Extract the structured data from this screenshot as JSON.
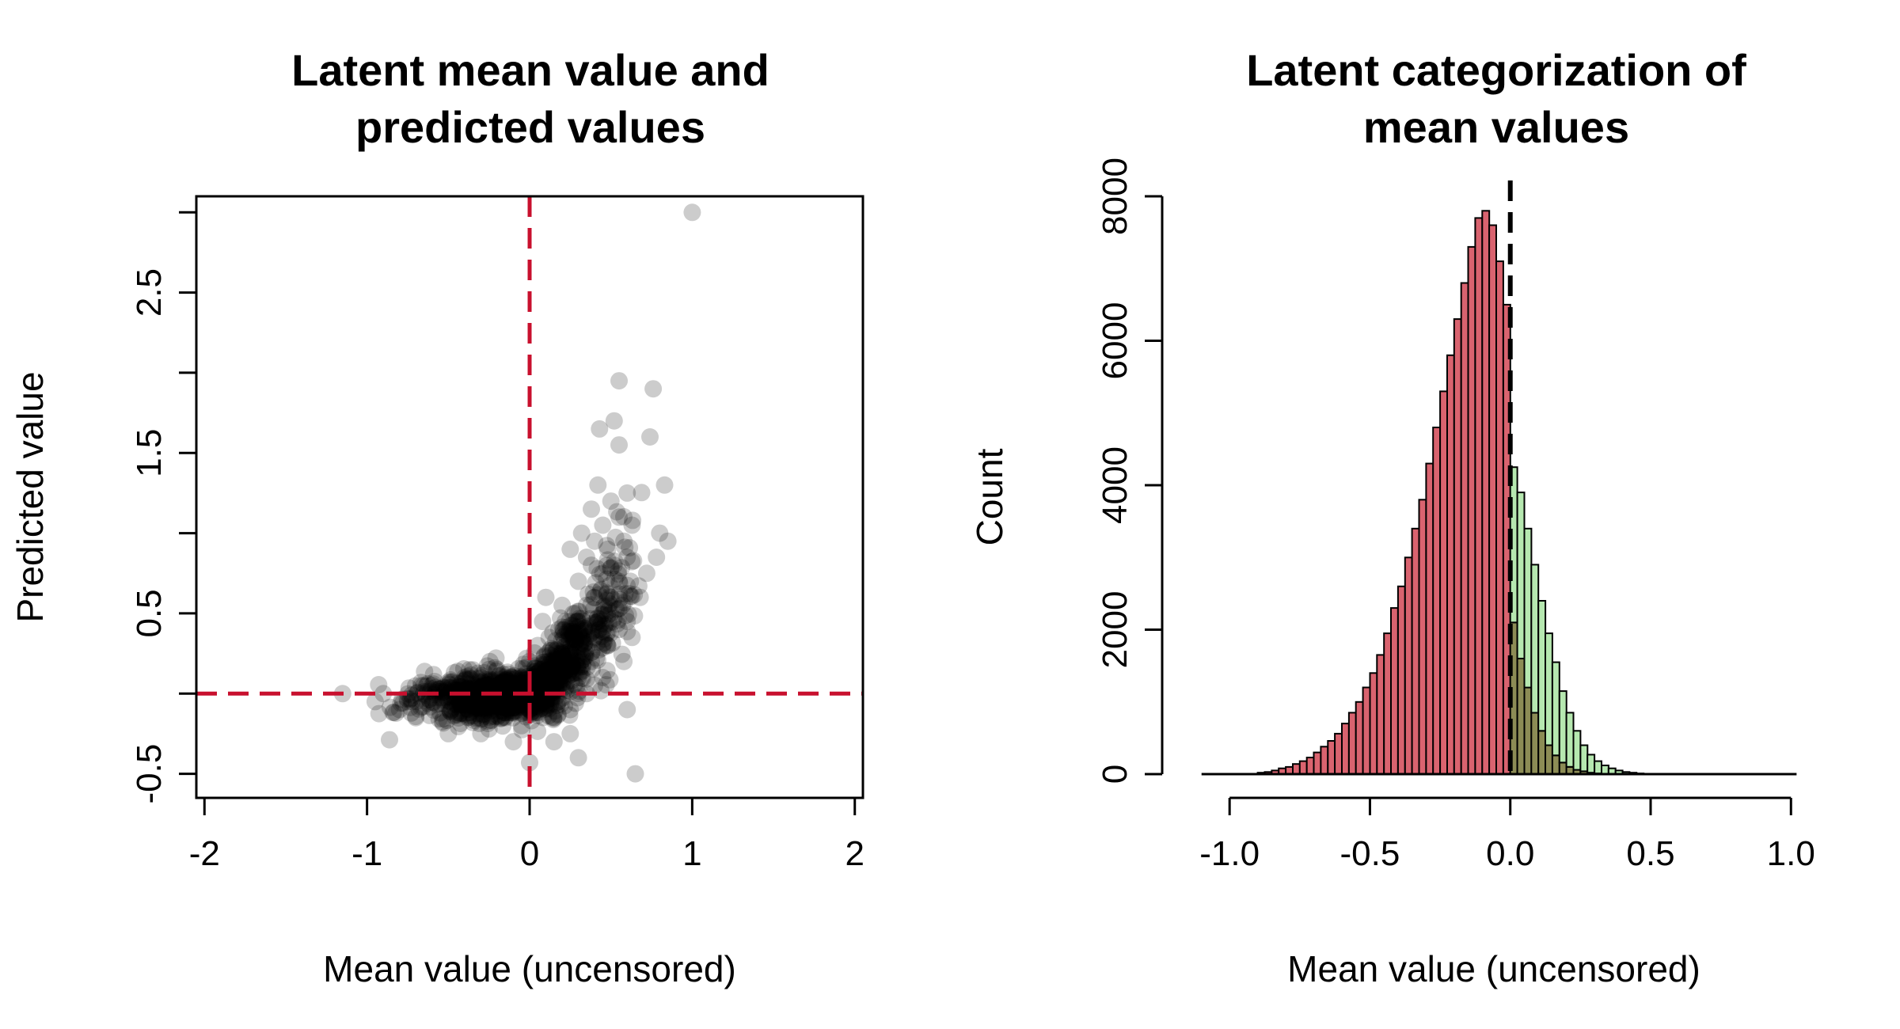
{
  "colors": {
    "scatter_point": "#000000",
    "reference_line": "#C8102E",
    "hist_negative": "#D9636F",
    "hist_positive": "#B6E8B0",
    "hist_overlap": "#8C8C55",
    "zero_line": "#000000"
  },
  "chart_data": [
    {
      "type": "scatter",
      "title": [
        "Latent mean value and",
        "predicted values"
      ],
      "xlabel": "Mean value (uncensored)",
      "ylabel": "Predicted value",
      "xlim": [
        -2.05,
        2.05
      ],
      "ylim": [
        -0.65,
        3.1
      ],
      "xticks": [
        -2,
        -1,
        0,
        1,
        2
      ],
      "xtick_labels": [
        "-2",
        "-1",
        "0",
        "1",
        "2"
      ],
      "yticks": [
        -0.5,
        0,
        0.5,
        1,
        1.5,
        2,
        2.5,
        3
      ],
      "ytick_labels": [
        "-0.5",
        "",
        "0.5",
        "",
        "1.5",
        "",
        "2.5",
        ""
      ],
      "reference_lines": {
        "vertical_x": 0,
        "horizontal_y": 0,
        "style": "dashed"
      },
      "points_note": "dense cloud of ~thousands semi-transparent grey points",
      "points": [
        [
          1.0,
          3.0
        ],
        [
          0.55,
          1.95
        ],
        [
          0.76,
          1.9
        ],
        [
          0.43,
          1.65
        ],
        [
          0.52,
          1.7
        ],
        [
          0.55,
          1.55
        ],
        [
          0.74,
          1.6
        ],
        [
          0.42,
          1.3
        ],
        [
          0.6,
          1.25
        ],
        [
          0.83,
          1.3
        ],
        [
          0.5,
          1.2
        ],
        [
          0.55,
          1.1
        ],
        [
          0.38,
          1.15
        ],
        [
          0.63,
          1.05
        ],
        [
          0.8,
          1.0
        ],
        [
          0.85,
          0.95
        ],
        [
          0.32,
          1.0
        ],
        [
          0.45,
          1.05
        ],
        [
          0.58,
          0.95
        ],
        [
          0.78,
          0.85
        ],
        [
          0.72,
          0.75
        ],
        [
          0.68,
          0.6
        ],
        [
          0.65,
          -0.5
        ],
        [
          0.0,
          -0.43
        ],
        [
          0.6,
          -0.1
        ],
        [
          0.3,
          -0.4
        ],
        [
          -1.15,
          0.0
        ],
        [
          -0.95,
          -0.05
        ],
        [
          0.1,
          0.6
        ],
        [
          0.08,
          0.45
        ],
        [
          0.2,
          0.55
        ],
        [
          0.3,
          0.7
        ],
        [
          0.35,
          0.85
        ],
        [
          0.25,
          0.9
        ],
        [
          0.4,
          0.95
        ],
        [
          0.48,
          0.9
        ],
        [
          0.52,
          0.8
        ],
        [
          0.6,
          0.85
        ],
        [
          0.55,
          0.7
        ],
        [
          0.62,
          0.7
        ],
        [
          0.45,
          0.75
        ],
        [
          0.38,
          0.8
        ],
        [
          -0.5,
          -0.25
        ],
        [
          -0.3,
          -0.25
        ],
        [
          -0.1,
          -0.3
        ],
        [
          0.15,
          -0.3
        ],
        [
          0.25,
          -0.25
        ],
        [
          -0.7,
          -0.15
        ],
        [
          -0.8,
          -0.1
        ],
        [
          -0.6,
          0.05
        ],
        [
          -0.4,
          0.1
        ],
        [
          -0.2,
          0.15
        ],
        [
          0.0,
          0.2
        ],
        [
          0.05,
          0.3
        ],
        [
          0.12,
          0.35
        ],
        [
          0.18,
          0.4
        ],
        [
          0.22,
          0.45
        ],
        [
          0.28,
          0.5
        ],
        [
          0.35,
          0.55
        ],
        [
          0.4,
          0.6
        ],
        [
          0.42,
          0.45
        ],
        [
          0.5,
          0.5
        ],
        [
          0.55,
          0.4
        ],
        [
          0.48,
          0.3
        ],
        [
          0.38,
          0.2
        ],
        [
          0.3,
          0.1
        ],
        [
          0.2,
          0.05
        ],
        [
          0.1,
          -0.05
        ],
        [
          0.0,
          -0.1
        ],
        [
          -0.15,
          -0.15
        ],
        [
          -0.35,
          -0.18
        ],
        [
          -0.55,
          -0.12
        ],
        [
          -0.75,
          -0.05
        ],
        [
          -0.9,
          0.0
        ],
        [
          -0.65,
          0.0
        ],
        [
          -0.45,
          0.02
        ],
        [
          -0.25,
          0.05
        ],
        [
          -0.05,
          0.08
        ],
        [
          0.15,
          0.15
        ],
        [
          0.25,
          0.25
        ],
        [
          0.32,
          0.35
        ],
        [
          0.44,
          0.65
        ],
        [
          0.5,
          0.6
        ],
        [
          0.57,
          0.55
        ],
        [
          0.6,
          0.45
        ],
        [
          0.63,
          0.35
        ],
        [
          0.58,
          0.2
        ],
        [
          0.45,
          0.1
        ],
        [
          0.35,
          0.0
        ],
        [
          0.25,
          -0.1
        ],
        [
          0.15,
          -0.15
        ],
        [
          -0.05,
          -0.2
        ],
        [
          -0.25,
          -0.22
        ],
        [
          0.4,
          0.35
        ],
        [
          0.46,
          0.42
        ],
        [
          0.36,
          0.62
        ],
        [
          0.3,
          0.45
        ],
        [
          0.26,
          0.35
        ],
        [
          0.2,
          0.25
        ],
        [
          0.14,
          0.2
        ]
      ]
    },
    {
      "type": "bar",
      "title": [
        "Latent categorization of",
        "mean values"
      ],
      "xlabel": "Mean value (uncensored)",
      "ylabel": "Count",
      "xlim": [
        -1.15,
        1.05
      ],
      "ylim": [
        0,
        8000
      ],
      "xticks": [
        -1.0,
        -0.5,
        0.0,
        0.5,
        1.0
      ],
      "xtick_labels": [
        "-1.0",
        "-0.5",
        "0.0",
        "0.5",
        "1.0"
      ],
      "yticks": [
        0,
        2000,
        4000,
        6000,
        8000
      ],
      "ytick_labels": [
        "0",
        "2000",
        "4000",
        "6000",
        "8000"
      ],
      "bin_width": 0.025,
      "reference_lines": {
        "vertical_x": 0,
        "style": "dashed"
      },
      "series": [
        {
          "bins_start": [
            -0.9,
            -0.875,
            -0.85,
            -0.825,
            -0.8,
            -0.775,
            -0.75,
            -0.725,
            -0.7,
            -0.675,
            -0.65,
            -0.625,
            -0.6,
            -0.575,
            -0.55,
            -0.525,
            -0.5,
            -0.475,
            -0.45,
            -0.425,
            -0.4,
            -0.375,
            -0.35,
            -0.325,
            -0.3,
            -0.275,
            -0.25,
            -0.225,
            -0.2,
            -0.175,
            -0.15,
            -0.125,
            -0.1,
            -0.075,
            -0.05,
            -0.025,
            0.0,
            0.025,
            0.05,
            0.075,
            0.1,
            0.125,
            0.15,
            0.175,
            0.2,
            0.225,
            0.25,
            0.275,
            0.3
          ],
          "values": [
            20,
            30,
            50,
            80,
            100,
            140,
            180,
            230,
            300,
            380,
            460,
            560,
            700,
            850,
            1000,
            1200,
            1400,
            1650,
            1950,
            2300,
            2600,
            3000,
            3400,
            3800,
            4300,
            4800,
            5300,
            5800,
            6300,
            6800,
            7300,
            7700,
            7800,
            7600,
            7100,
            6500,
            2100,
            1600,
            1200,
            850,
            600,
            400,
            260,
            160,
            100,
            60,
            40,
            20,
            10
          ]
        },
        {
          "bins_start": [
            0.0,
            0.025,
            0.05,
            0.075,
            0.1,
            0.125,
            0.15,
            0.175,
            0.2,
            0.225,
            0.25,
            0.275,
            0.3,
            0.325,
            0.35,
            0.375,
            0.4,
            0.425,
            0.45,
            0.475,
            0.5
          ],
          "values": [
            4250,
            3900,
            3400,
            2900,
            2400,
            1950,
            1550,
            1150,
            850,
            600,
            400,
            270,
            180,
            120,
            80,
            50,
            30,
            20,
            10,
            6,
            4
          ]
        }
      ]
    }
  ]
}
